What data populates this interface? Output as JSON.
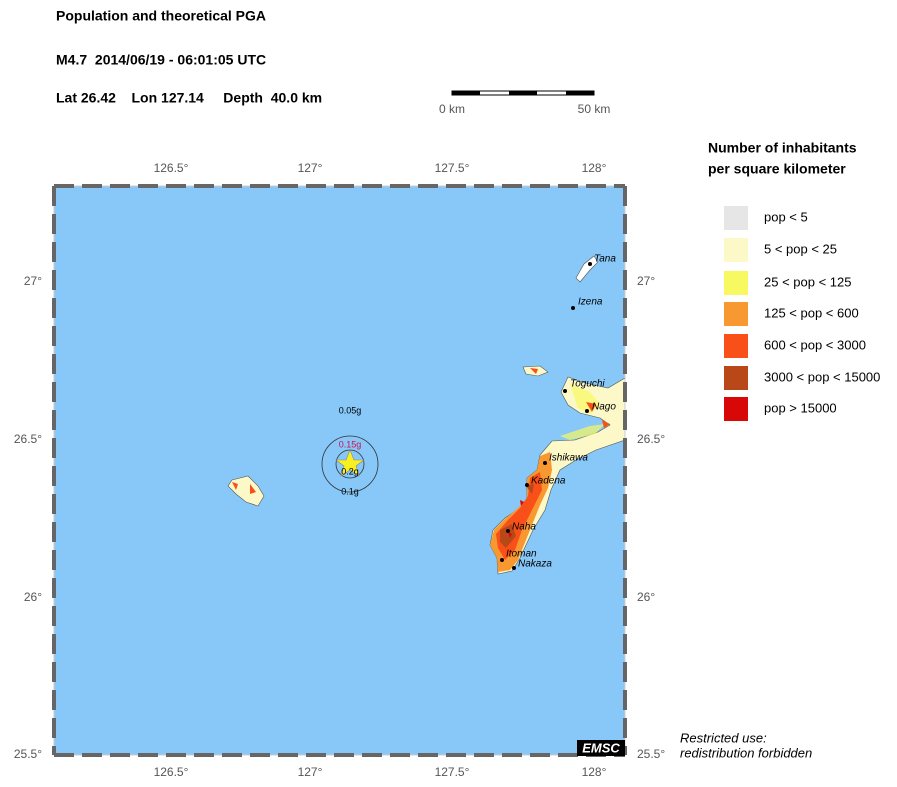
{
  "header": {
    "title": "Population and theoretical PGA",
    "event": "M4.7  2014/06/19 - 06:01:05 UTC",
    "location": "Lat 26.42    Lon 127.14     Depth  40.0 km"
  },
  "scale": {
    "start": "0 km",
    "end": "50 km"
  },
  "legend": {
    "title_lines": [
      "Number of inhabitants",
      "per square kilometer"
    ],
    "items": [
      {
        "label": "pop < 5",
        "color": "#e6e6e6"
      },
      {
        "label": "5 < pop < 25",
        "color": "#fcf8c8"
      },
      {
        "label": "25 < pop < 125",
        "color": "#f8f860"
      },
      {
        "label": "125 < pop < 600",
        "color": "#f89830"
      },
      {
        "label": "600 < pop < 3000",
        "color": "#f85018"
      },
      {
        "label": "3000 < pop < 15000",
        "color": "#b84818"
      },
      {
        "label": "pop > 15000",
        "color": "#d80808"
      }
    ]
  },
  "map": {
    "lon_ticks": [
      "126.5°",
      "127°",
      "127.5°",
      "128°"
    ],
    "lat_ticks": [
      "27°",
      "26.5°",
      "26°",
      "25.5°"
    ],
    "cities": [
      "Tana",
      "Izena",
      "Toguchi",
      "Nago",
      "Ishikawa",
      "Kadena",
      "Naha",
      "Itoman",
      "Nakaza"
    ],
    "pga_labels": [
      "0.05g",
      "0.15g",
      "0.2g",
      "0.1g"
    ],
    "logo": "EMSC"
  },
  "footer": [
    "Restricted use:",
    "redistribution forbidden"
  ]
}
